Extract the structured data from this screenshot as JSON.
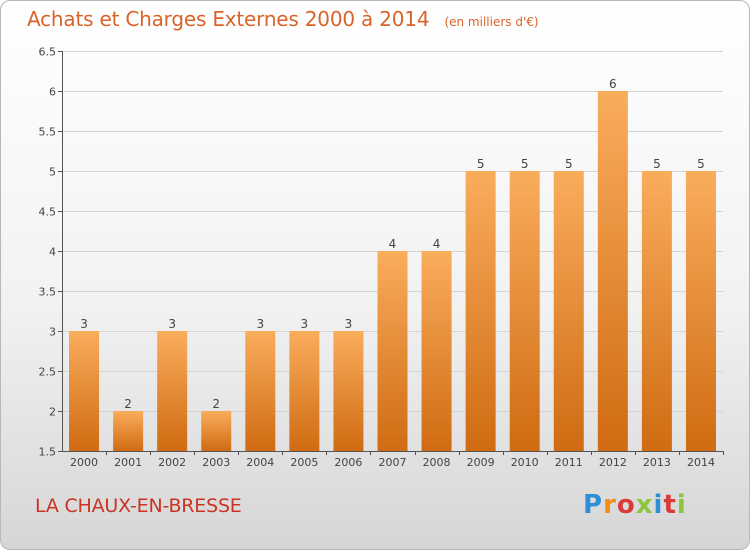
{
  "header": {
    "title": "Achats et Charges Externes 2000 à 2014",
    "subtitle": "(en milliers d'€)"
  },
  "footer": {
    "town": "LA CHAUX-EN-BRESSE",
    "logo_text": "Proxiti"
  },
  "colors": {
    "title": "#d9642a",
    "town": "#cc3322",
    "bar_light": "#f9ad5c",
    "bar_dark": "#d06b12"
  },
  "chart_data": {
    "type": "bar",
    "title": "Achats et Charges Externes 2000 à 2014",
    "subtitle": "(en milliers d'€)",
    "categories": [
      "2000",
      "2001",
      "2002",
      "2003",
      "2004",
      "2005",
      "2006",
      "2007",
      "2008",
      "2009",
      "2010",
      "2011",
      "2012",
      "2013",
      "2014"
    ],
    "values": [
      3,
      2,
      3,
      2,
      3,
      3,
      3,
      4,
      4,
      5,
      5,
      5,
      6,
      5,
      5
    ],
    "ylim": [
      1.5,
      6.5
    ],
    "yticks": [
      1.5,
      2,
      2.5,
      3,
      3.5,
      4,
      4.5,
      5,
      5.5,
      6,
      6.5
    ],
    "grid": true
  }
}
